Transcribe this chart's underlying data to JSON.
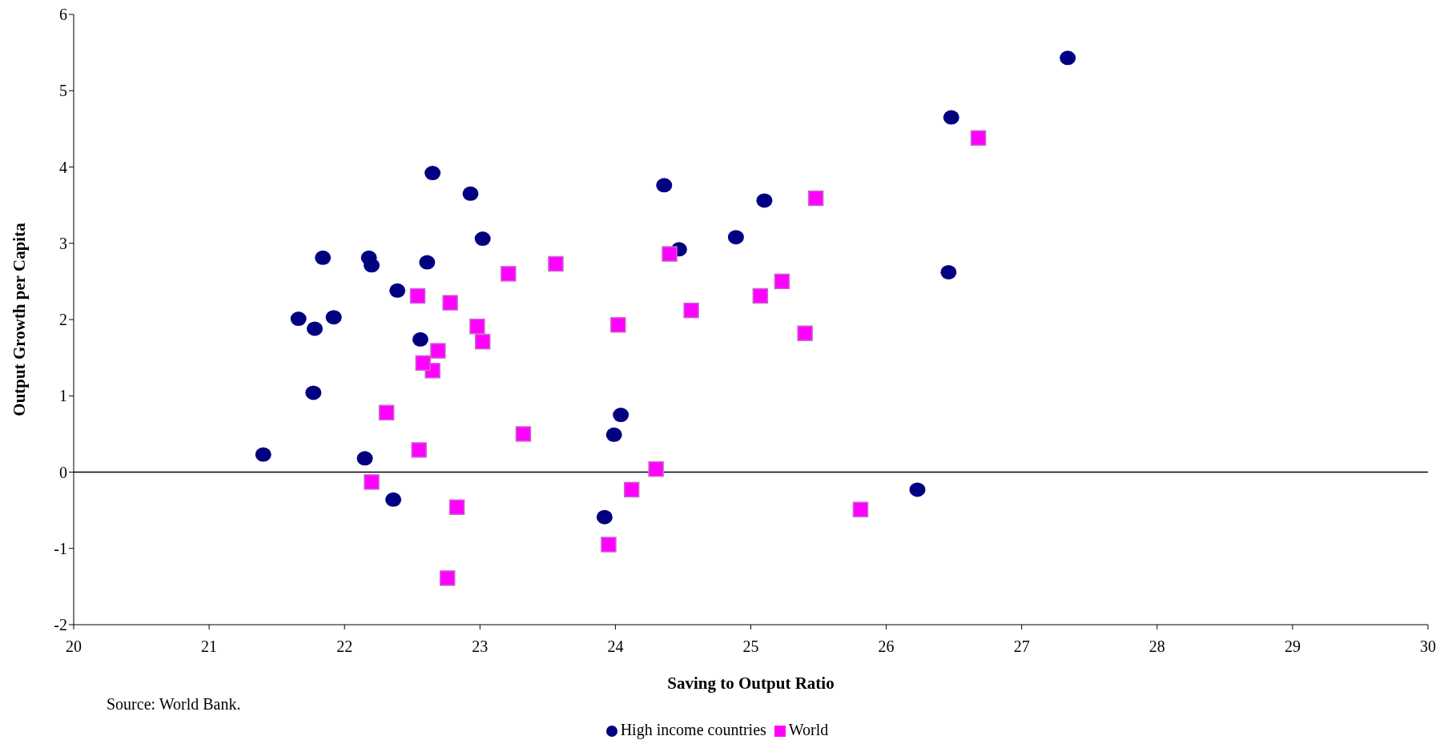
{
  "chart_data": {
    "type": "scatter",
    "xlabel": "Saving to Output Ratio",
    "ylabel": "Output Growth per Capita",
    "annotations": [
      "Source: World Bank."
    ],
    "xlim": [
      20,
      30
    ],
    "xticks": [
      20,
      21,
      22,
      23,
      24,
      25,
      26,
      27,
      28,
      29,
      30
    ],
    "ylim": [
      -2,
      6
    ],
    "yticks": [
      -2,
      -1,
      0,
      1,
      2,
      3,
      4,
      5,
      6
    ],
    "grid": false,
    "legend": "bottom",
    "ref_lines": [
      {
        "axis": "y",
        "value": 0,
        "color": "#000000"
      }
    ],
    "series": [
      {
        "name": "High income countries",
        "color": "#000080",
        "marker": "circle",
        "x": [
          27.34,
          26.48,
          26.46,
          26.23,
          25.1,
          24.89,
          24.47,
          24.36,
          24.04,
          23.99,
          23.92,
          23.02,
          22.93,
          22.65,
          22.61,
          22.56,
          22.39,
          22.36,
          22.2,
          22.18,
          22.15,
          21.92,
          21.84,
          21.78,
          21.77,
          21.66,
          21.4
        ],
        "values": [
          5.43,
          4.65,
          2.62,
          -0.23,
          3.56,
          3.08,
          2.92,
          3.76,
          0.75,
          0.49,
          -0.59,
          3.06,
          3.65,
          3.92,
          2.75,
          1.74,
          2.38,
          -0.36,
          2.71,
          2.81,
          0.18,
          2.03,
          2.81,
          1.88,
          1.04,
          2.01,
          0.23
        ]
      },
      {
        "name": "World",
        "color": "#ff00ff",
        "marker": "square",
        "x": [
          26.68,
          25.81,
          25.48,
          25.4,
          25.23,
          25.07,
          24.56,
          24.4,
          24.3,
          24.12,
          24.02,
          23.95,
          23.56,
          23.32,
          23.21,
          23.02,
          22.98,
          22.83,
          22.78,
          22.76,
          22.69,
          22.65,
          22.58,
          22.55,
          22.54,
          22.31,
          22.2
        ],
        "values": [
          4.38,
          -0.49,
          3.59,
          1.82,
          2.5,
          2.31,
          2.12,
          2.86,
          0.04,
          -0.23,
          1.93,
          -0.95,
          2.73,
          0.5,
          2.6,
          1.71,
          1.91,
          -0.46,
          2.22,
          -1.39,
          1.59,
          1.33,
          1.43,
          0.29,
          2.31,
          0.78,
          -0.13
        ]
      }
    ]
  }
}
